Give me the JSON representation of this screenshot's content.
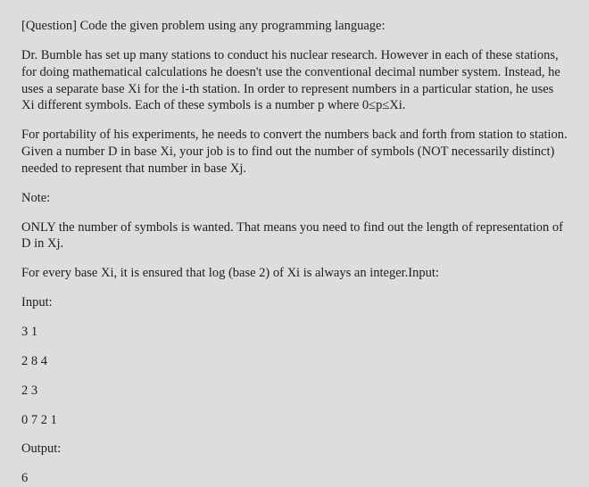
{
  "heading": "[Question] Code the given problem using any programming language:",
  "para1": "Dr. Bumble has set up many stations to conduct his nuclear research. However in each of these stations, for doing mathematical calculations he doesn't use the conventional decimal number system. Instead, he uses a separate base Xi for the i-th station. In order to represent numbers in a particular station, he uses Xi different symbols. Each of these symbols is a number p where 0≤p≤Xi.",
  "para2": "For portability of his experiments, he needs to convert the numbers back and forth from station to station. Given a number D in base Xi, your job is to find out the number of symbols (NOT necessarily distinct) needed to represent that number in base Xj.",
  "note_label": "Note:",
  "para3": "ONLY the number of symbols is wanted. That means you need to find out the length of representation of D in Xj.",
  "para4": "For every base Xi, it is ensured that log (base 2) of Xi is always an integer.Input:",
  "input_label": "Input:",
  "input_line1": "3 1",
  "input_line2": "2 8 4",
  "input_line3": "2 3",
  "input_line4": "0 7 2 1",
  "output_label": "Output:",
  "output_line1": "6"
}
